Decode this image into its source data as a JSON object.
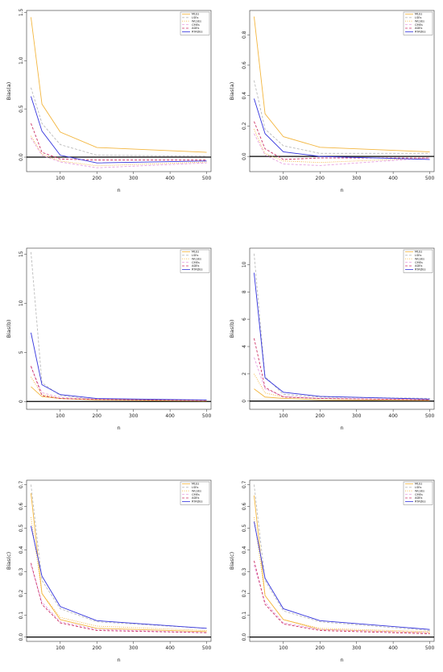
{
  "chart_data": [
    {
      "type": "line",
      "xlabel": "n",
      "ylabel": "Bias(a)",
      "x": [
        20,
        50,
        100,
        200,
        500
      ],
      "xticks": [
        100,
        200,
        300,
        400,
        500
      ],
      "xlim": [
        8,
        512
      ],
      "ylim": [
        -0.15,
        1.52
      ],
      "yticks": [
        "0.0",
        "0.5",
        "1.0",
        "1.5"
      ],
      "yticks_values": [
        0,
        0.5,
        1,
        1.5
      ],
      "legend": "top-right",
      "series": [
        {
          "name": "MLEs",
          "color": "#f3b63f",
          "dash": "solid",
          "values": [
            1.45,
            0.55,
            0.26,
            0.1,
            0.05
          ]
        },
        {
          "name": "LSEs",
          "color": "#bbbbbb",
          "dash": "dashed",
          "values": [
            0.72,
            0.35,
            0.13,
            0.02,
            0.01
          ]
        },
        {
          "name": "WLSEs",
          "color": "#f3b63f",
          "dash": "dotted",
          "values": [
            0.22,
            0.03,
            -0.04,
            -0.09,
            -0.05
          ]
        },
        {
          "name": "CMEs",
          "color": "#e7a0e0",
          "dash": "dashed",
          "values": [
            0.2,
            0.02,
            -0.05,
            -0.11,
            -0.06
          ]
        },
        {
          "name": "ADEs",
          "color": "#cc3366",
          "dash": "dashed",
          "values": [
            0.35,
            0.05,
            -0.02,
            -0.03,
            -0.03
          ]
        },
        {
          "name": "RTADEs",
          "color": "#3333dd",
          "dash": "solid",
          "values": [
            0.63,
            0.27,
            0.02,
            -0.06,
            -0.04
          ]
        }
      ]
    },
    {
      "type": "line",
      "xlabel": "n",
      "ylabel": "Bias(a)",
      "x": [
        20,
        50,
        100,
        200,
        500
      ],
      "xticks": [
        100,
        200,
        300,
        400,
        500
      ],
      "xlim": [
        8,
        512
      ],
      "ylim": [
        -0.1,
        0.96
      ],
      "yticks": [
        "0.0",
        "0.2",
        "0.4",
        "0.6",
        "0.8"
      ],
      "yticks_values": [
        0,
        0.2,
        0.4,
        0.6,
        0.8
      ],
      "legend": "top-right",
      "series": [
        {
          "name": "MLEs",
          "color": "#f3b63f",
          "dash": "solid",
          "values": [
            0.92,
            0.28,
            0.13,
            0.06,
            0.03
          ]
        },
        {
          "name": "LSEs",
          "color": "#bbbbbb",
          "dash": "dashed",
          "values": [
            0.5,
            0.18,
            0.07,
            0.02,
            0.02
          ]
        },
        {
          "name": "WLSEs",
          "color": "#f3b63f",
          "dash": "dotted",
          "values": [
            0.18,
            0.02,
            -0.03,
            -0.04,
            -0.01
          ]
        },
        {
          "name": "CMEs",
          "color": "#e7a0e0",
          "dash": "dashed",
          "values": [
            0.15,
            0.01,
            -0.05,
            -0.06,
            -0.01
          ]
        },
        {
          "name": "ADEs",
          "color": "#cc3366",
          "dash": "dashed",
          "values": [
            0.23,
            0.05,
            -0.02,
            -0.01,
            -0.01
          ]
        },
        {
          "name": "RTADEs",
          "color": "#3333dd",
          "dash": "solid",
          "values": [
            0.38,
            0.15,
            0.03,
            0.0,
            -0.02
          ]
        }
      ]
    },
    {
      "type": "line",
      "xlabel": "n",
      "ylabel": "Bias(b)",
      "x": [
        20,
        50,
        100,
        200,
        500
      ],
      "xticks": [
        100,
        200,
        300,
        400,
        500
      ],
      "xlim": [
        8,
        512
      ],
      "ylim": [
        -0.8,
        15.6
      ],
      "yticks": [
        "0",
        "5",
        "10",
        "15"
      ],
      "yticks_values": [
        0,
        5,
        10,
        15
      ],
      "legend": "top-right",
      "series": [
        {
          "name": "MLEs",
          "color": "#f3b63f",
          "dash": "solid",
          "values": [
            1.5,
            0.5,
            0.3,
            0.15,
            0.05
          ]
        },
        {
          "name": "LSEs",
          "color": "#bbbbbb",
          "dash": "dashed",
          "values": [
            15.2,
            1.9,
            0.6,
            0.2,
            0.1
          ]
        },
        {
          "name": "WLSEs",
          "color": "#f3b63f",
          "dash": "dotted",
          "values": [
            2.5,
            0.7,
            0.3,
            0.2,
            0.1
          ]
        },
        {
          "name": "CMEs",
          "color": "#e7a0e0",
          "dash": "dashed",
          "values": [
            3.5,
            0.9,
            0.4,
            0.25,
            0.1
          ]
        },
        {
          "name": "ADEs",
          "color": "#cc3366",
          "dash": "dashed",
          "values": [
            3.6,
            0.6,
            0.3,
            0.2,
            0.1
          ]
        },
        {
          "name": "RTADEs",
          "color": "#3333dd",
          "dash": "solid",
          "values": [
            7.0,
            1.7,
            0.7,
            0.3,
            0.15
          ]
        }
      ]
    },
    {
      "type": "line",
      "xlabel": "n",
      "ylabel": "Bias(b)",
      "x": [
        20,
        50,
        100,
        200,
        500
      ],
      "xticks": [
        100,
        200,
        300,
        400,
        500
      ],
      "xlim": [
        8,
        512
      ],
      "ylim": [
        -0.6,
        11.2
      ],
      "yticks": [
        "0",
        "2",
        "4",
        "6",
        "8",
        "10"
      ],
      "yticks_values": [
        0,
        2,
        4,
        6,
        8,
        10
      ],
      "legend": "top-right",
      "series": [
        {
          "name": "MLEs",
          "color": "#f3b63f",
          "dash": "solid",
          "values": [
            0.9,
            0.3,
            0.2,
            0.1,
            0.05
          ]
        },
        {
          "name": "LSEs",
          "color": "#bbbbbb",
          "dash": "dashed",
          "values": [
            10.8,
            1.8,
            0.5,
            0.3,
            0.2
          ]
        },
        {
          "name": "WLSEs",
          "color": "#f3b63f",
          "dash": "dotted",
          "values": [
            2.0,
            0.6,
            0.3,
            0.2,
            0.1
          ]
        },
        {
          "name": "CMEs",
          "color": "#e7a0e0",
          "dash": "dashed",
          "values": [
            3.2,
            0.9,
            0.35,
            0.2,
            0.1
          ]
        },
        {
          "name": "ADEs",
          "color": "#cc3366",
          "dash": "dashed",
          "values": [
            4.6,
            1.0,
            0.3,
            0.2,
            0.1
          ]
        },
        {
          "name": "RTADEs",
          "color": "#3333dd",
          "dash": "solid",
          "values": [
            9.4,
            1.7,
            0.65,
            0.35,
            0.15
          ]
        }
      ]
    },
    {
      "type": "line",
      "xlabel": "n",
      "ylabel": "Bias(c)",
      "x": [
        20,
        50,
        100,
        200,
        500
      ],
      "xticks": [
        100,
        200,
        300,
        400,
        500
      ],
      "xlim": [
        8,
        512
      ],
      "ylim": [
        -0.02,
        0.72
      ],
      "yticks": [
        "0.0",
        "0.1",
        "0.2",
        "0.3",
        "0.4",
        "0.5",
        "0.6",
        "0.7"
      ],
      "yticks_values": [
        0,
        0.1,
        0.2,
        0.3,
        0.4,
        0.5,
        0.6,
        0.7
      ],
      "legend": "top-right",
      "series": [
        {
          "name": "MLEs",
          "color": "#f3b63f",
          "dash": "solid",
          "values": [
            0.66,
            0.2,
            0.08,
            0.04,
            0.025
          ]
        },
        {
          "name": "LSEs",
          "color": "#bbbbbb",
          "dash": "dashed",
          "values": [
            0.7,
            0.26,
            0.13,
            0.07,
            0.04
          ]
        },
        {
          "name": "WLSEs",
          "color": "#f3b63f",
          "dash": "dotted",
          "values": [
            0.55,
            0.2,
            0.09,
            0.05,
            0.03
          ]
        },
        {
          "name": "CMEs",
          "color": "#e7a0e0",
          "dash": "dashed",
          "values": [
            0.33,
            0.16,
            0.07,
            0.035,
            0.02
          ]
        },
        {
          "name": "ADEs",
          "color": "#cc3366",
          "dash": "dashed",
          "values": [
            0.34,
            0.15,
            0.065,
            0.03,
            0.02
          ]
        },
        {
          "name": "RTADEs",
          "color": "#3333dd",
          "dash": "solid",
          "values": [
            0.51,
            0.28,
            0.14,
            0.075,
            0.04
          ]
        }
      ]
    },
    {
      "type": "line",
      "xlabel": "n",
      "ylabel": "Bias(c)",
      "x": [
        20,
        50,
        100,
        200,
        500
      ],
      "xticks": [
        100,
        200,
        300,
        400,
        500
      ],
      "xlim": [
        8,
        512
      ],
      "ylim": [
        -0.02,
        0.72
      ],
      "yticks": [
        "0.0",
        "0.1",
        "0.2",
        "0.3",
        "0.4",
        "0.5",
        "0.6",
        "0.7"
      ],
      "yticks_values": [
        0,
        0.1,
        0.2,
        0.3,
        0.4,
        0.5,
        0.6,
        0.7
      ],
      "legend": "top-right",
      "series": [
        {
          "name": "MLEs",
          "color": "#f3b63f",
          "dash": "solid",
          "values": [
            0.65,
            0.19,
            0.08,
            0.035,
            0.02
          ]
        },
        {
          "name": "LSEs",
          "color": "#bbbbbb",
          "dash": "dashed",
          "values": [
            0.7,
            0.26,
            0.12,
            0.07,
            0.03
          ]
        },
        {
          "name": "WLSEs",
          "color": "#f3b63f",
          "dash": "dotted",
          "values": [
            0.55,
            0.19,
            0.08,
            0.04,
            0.025
          ]
        },
        {
          "name": "CMEs",
          "color": "#e7a0e0",
          "dash": "dashed",
          "values": [
            0.33,
            0.16,
            0.065,
            0.035,
            0.02
          ]
        },
        {
          "name": "ADEs",
          "color": "#cc3366",
          "dash": "dashed",
          "values": [
            0.35,
            0.15,
            0.06,
            0.03,
            0.015
          ]
        },
        {
          "name": "RTADEs",
          "color": "#3333dd",
          "dash": "solid",
          "values": [
            0.53,
            0.27,
            0.13,
            0.075,
            0.035
          ]
        }
      ]
    }
  ]
}
